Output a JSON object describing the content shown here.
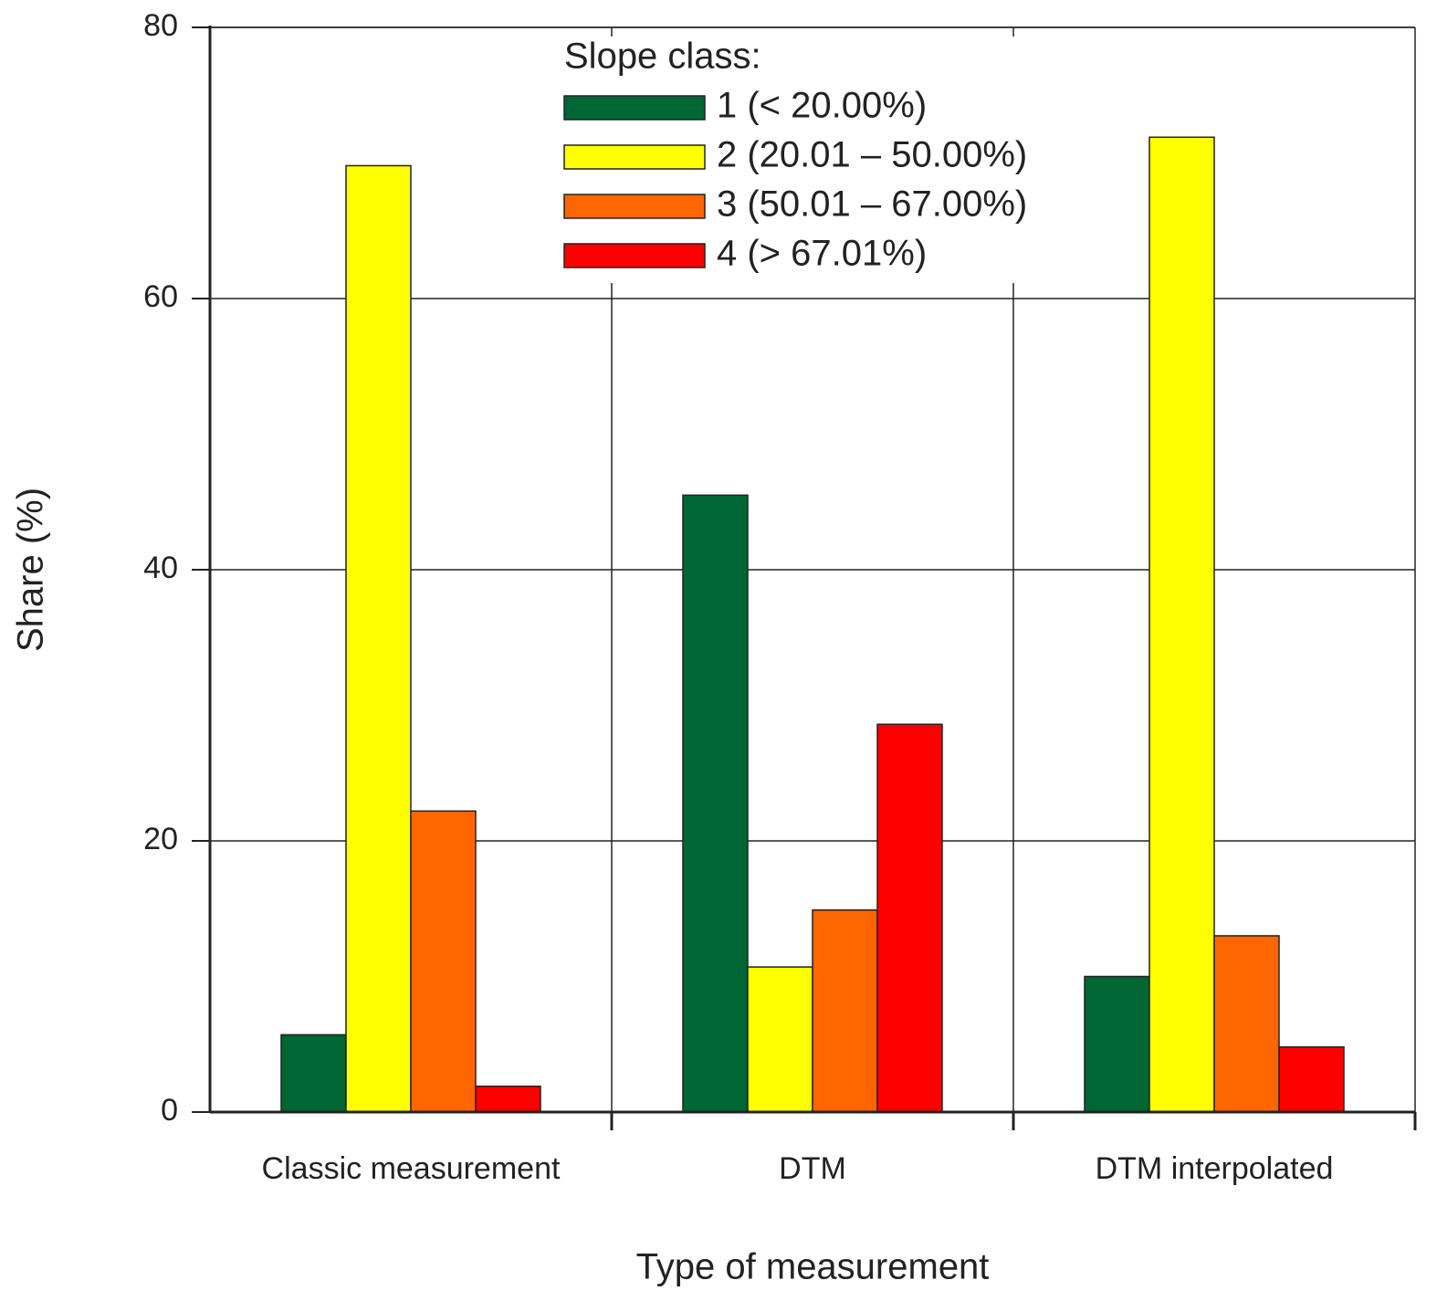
{
  "chart_data": {
    "type": "bar",
    "x_label": "Type of measurement",
    "y_label": "Share (%)",
    "categories": [
      "Classic measurement",
      "DTM",
      "DTM interpolated"
    ],
    "legend_title": "Slope class:",
    "series": [
      {
        "name": "1 (< 20.00%)",
        "color": "#006633",
        "values": [
          5.7,
          45.5,
          10.0
        ]
      },
      {
        "name": "2 (20.01 – 50.00%)",
        "color": "#ffff00",
        "values": [
          69.8,
          10.7,
          71.9
        ]
      },
      {
        "name": "3 (50.01 – 67.00%)",
        "color": "#ff6600",
        "values": [
          22.2,
          14.9,
          13.0
        ]
      },
      {
        "name": "4 (> 67.01%)",
        "color": "#ff0000",
        "values": [
          1.9,
          28.6,
          4.8
        ]
      }
    ],
    "ylim": [
      0,
      80
    ],
    "yticks": [
      0,
      20,
      40,
      60,
      80
    ],
    "grid": true,
    "legend_position": "top"
  }
}
